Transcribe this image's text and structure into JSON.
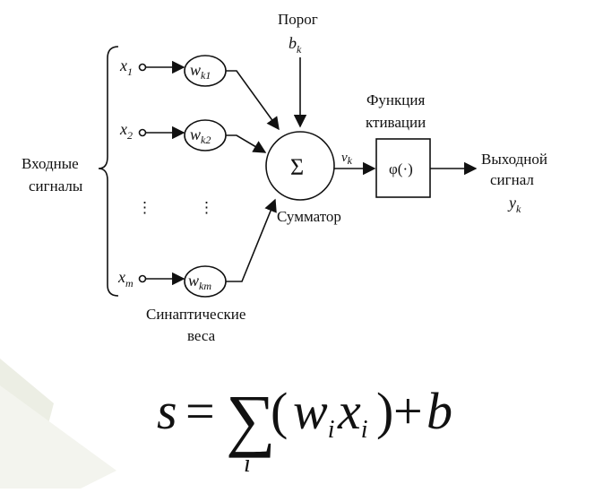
{
  "threshold": {
    "label": "Порог",
    "symbol": "b",
    "sub": "k"
  },
  "activation": {
    "title_line1": "Функция",
    "title_line2": "ктивации",
    "symbol": "φ(·)"
  },
  "summator": {
    "symbol": "Σ",
    "label": "Сумматор",
    "output_symbol": "v",
    "output_sub": "k"
  },
  "inputs": {
    "label_line1": "Входные",
    "label_line2": "сигналы",
    "items": [
      {
        "symbol": "x",
        "sub": "1",
        "weight": "w",
        "weight_sub": "k1"
      },
      {
        "symbol": "x",
        "sub": "2",
        "weight": "w",
        "weight_sub": "k2"
      },
      {
        "symbol": "x",
        "sub": "m",
        "weight": "w",
        "weight_sub": "km"
      }
    ],
    "ellipsis": "⋮"
  },
  "weights_caption": {
    "line1": "Синаптические",
    "line2": "веса"
  },
  "output": {
    "line1": "Выходной",
    "line2": "сигнал",
    "symbol": "y",
    "sub": "k"
  },
  "formula": {
    "lhs": "s",
    "eq": "=",
    "sum": "∑",
    "index": "i",
    "open": "(",
    "w": "w",
    "wi": "i",
    "x": "x",
    "xi": "i",
    "close": ")",
    "plus": "+",
    "b": "b"
  }
}
